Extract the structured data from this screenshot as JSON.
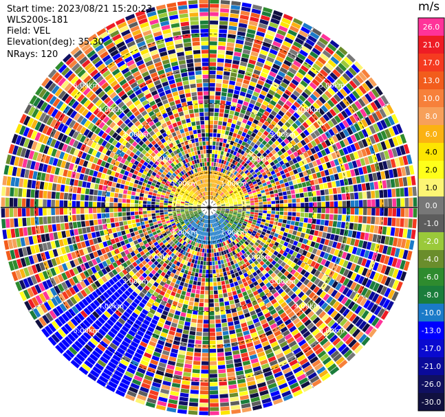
{
  "header": {
    "start_time": "Start time: 2023/08/21 15:20:23",
    "instrument": "WLS200s-181",
    "field": "Field: VEL",
    "elevation": "Elevation(deg): 35.30",
    "nrays": "NRays: 120"
  },
  "colorbar": {
    "unit": "m/s",
    "bins": [
      {
        "label": "26.0",
        "color": "#ff3399"
      },
      {
        "label": "21.0",
        "color": "#ee1c25"
      },
      {
        "label": "17.0",
        "color": "#f53b20"
      },
      {
        "label": "13.0",
        "color": "#f25c1c"
      },
      {
        "label": "10.0",
        "color": "#f7803a"
      },
      {
        "label": "8.0",
        "color": "#f7a05a"
      },
      {
        "label": "6.0",
        "color": "#fbb212"
      },
      {
        "label": "4.0",
        "color": "#fde501"
      },
      {
        "label": "2.0",
        "color": "#ffff1a"
      },
      {
        "label": "1.0",
        "color": "#fdf574"
      },
      {
        "label": "0.0",
        "color": "#777777"
      },
      {
        "label": "-1.0",
        "color": "#5d5d5d"
      },
      {
        "label": "-2.0",
        "color": "#9ac93a"
      },
      {
        "label": "-4.0",
        "color": "#6a8d2c"
      },
      {
        "label": "-6.0",
        "color": "#2e8b2e"
      },
      {
        "label": "-8.0",
        "color": "#1a7d3b"
      },
      {
        "label": "-10.0",
        "color": "#1a7ac8"
      },
      {
        "label": "-13.0",
        "color": "#0000ff"
      },
      {
        "label": "-17.0",
        "color": "#0a0ad0"
      },
      {
        "label": "-21.0",
        "color": "#0a0a9a"
      },
      {
        "label": "-26.0",
        "color": "#101060"
      },
      {
        "label": "-30.0",
        "color": "#101040"
      }
    ]
  },
  "chart_data": {
    "type": "ppi",
    "field": "VEL",
    "units": "m/s",
    "rays": 120,
    "range_rings_km": [
      1.0,
      2.0,
      3.0,
      4.0,
      5.0
    ],
    "range_ring_labels": [
      "1.00km",
      "2.00km",
      "3.00km",
      "4.00km",
      "5.00km"
    ],
    "note_near_field": "near-range sector colors: positive (yellow/orange) to the north, negative (green/blue) to the south"
  }
}
